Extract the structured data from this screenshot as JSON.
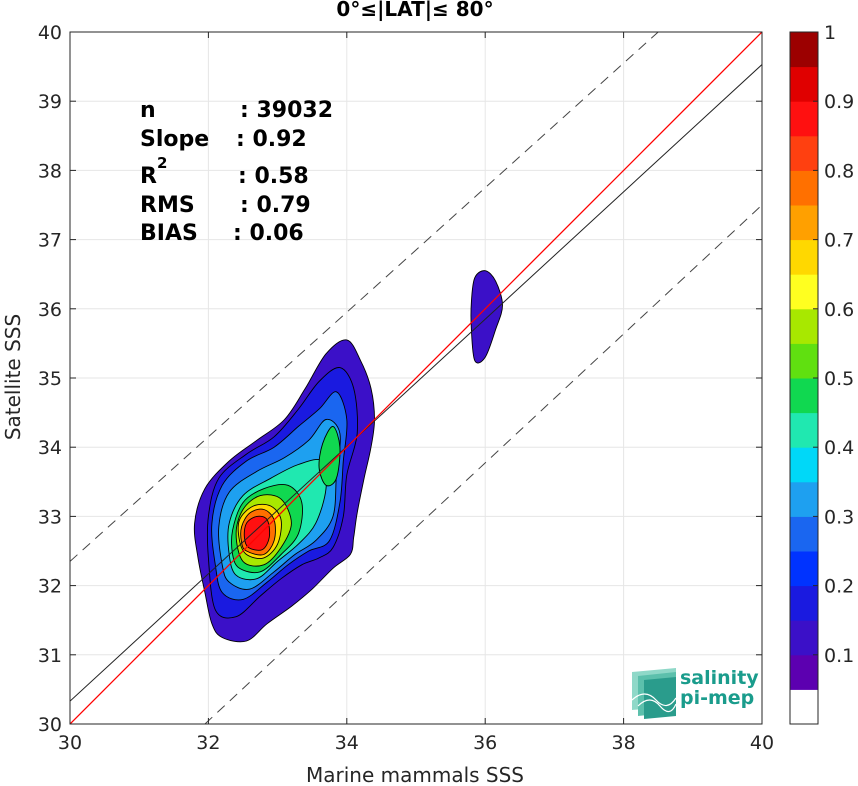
{
  "chart_data": {
    "type": "heatmap",
    "title": "0°≤|LAT|≤ 80°",
    "xlabel": "Marine mammals SSS",
    "ylabel": "Satellite SSS",
    "xlim": [
      30,
      40
    ],
    "ylim": [
      30,
      40
    ],
    "x_ticks": [
      "30",
      "32",
      "34",
      "36",
      "38",
      "40"
    ],
    "y_ticks": [
      "30",
      "31",
      "32",
      "33",
      "34",
      "35",
      "36",
      "37",
      "38",
      "39",
      "40"
    ],
    "grid": true,
    "colorbar": {
      "range": [
        0,
        1
      ],
      "tick_labels": [
        "0.1",
        "0.2",
        "0.3",
        "0.4",
        "0.5",
        "0.6",
        "0.7",
        "0.8",
        "0.9",
        "1"
      ],
      "colors": [
        "#ffffff",
        "#5c00b0",
        "#3b10c8",
        "#1a1ae0",
        "#0033ff",
        "#1a66f0",
        "#1ea0f0",
        "#00d8f8",
        "#20e8b0",
        "#10d850",
        "#60e010",
        "#a8e800",
        "#ffff20",
        "#ffd800",
        "#ffa000",
        "#ff7000",
        "#ff4010",
        "#ff1010",
        "#e00000",
        "#9c0000"
      ]
    },
    "stats": {
      "n_label": "n",
      "n_value": ": 39032",
      "slope_label": "Slope",
      "slope_value": ": 0.92",
      "r2_label": "R",
      "r2_sup": "2",
      "r2_value": ": 0.58",
      "rms_label": "RMS",
      "rms_value": ": 0.79",
      "bias_label": "BIAS",
      "bias_value": ": 0.06"
    },
    "lines": {
      "identity": {
        "color": "#ff0000",
        "x": [
          30,
          40
        ],
        "y": [
          30,
          40
        ]
      },
      "regression": {
        "color": "#222222",
        "x": [
          30,
          40
        ],
        "y": [
          30.33,
          39.53
        ]
      },
      "upper_dashed": {
        "color": "#444444",
        "x": [
          30,
          38.5
        ],
        "y": [
          32.35,
          40
        ]
      },
      "lower_dashed": {
        "color": "#444444",
        "x": [
          31.95,
          40
        ],
        "y": [
          30,
          37.5
        ]
      }
    },
    "main_blob_levels": [
      {
        "level": 0.05,
        "color": "#3b10c8",
        "points": [
          [
            32.2,
            31.25
          ],
          [
            32.55,
            31.2
          ],
          [
            32.85,
            31.45
          ],
          [
            33.2,
            31.7
          ],
          [
            33.5,
            31.95
          ],
          [
            33.8,
            32.25
          ],
          [
            34.05,
            32.45
          ],
          [
            34.1,
            32.7
          ],
          [
            34.15,
            33.05
          ],
          [
            34.25,
            33.55
          ],
          [
            34.35,
            34.0
          ],
          [
            34.4,
            34.4
          ],
          [
            34.35,
            34.85
          ],
          [
            34.2,
            35.25
          ],
          [
            34.0,
            35.55
          ],
          [
            33.7,
            35.35
          ],
          [
            33.4,
            34.85
          ],
          [
            33.1,
            34.4
          ],
          [
            32.7,
            34.1
          ],
          [
            32.3,
            33.8
          ],
          [
            31.95,
            33.4
          ],
          [
            31.8,
            32.9
          ],
          [
            31.85,
            32.4
          ],
          [
            31.95,
            31.9
          ],
          [
            32.05,
            31.45
          ]
        ]
      },
      {
        "level": 0.1,
        "color": "#1a1ae0",
        "points": [
          [
            32.1,
            31.65
          ],
          [
            32.4,
            31.55
          ],
          [
            32.75,
            31.85
          ],
          [
            33.05,
            32.1
          ],
          [
            33.35,
            32.3
          ],
          [
            33.6,
            32.4
          ],
          [
            33.8,
            32.55
          ],
          [
            33.95,
            33.0
          ],
          [
            34.0,
            33.6
          ],
          [
            34.15,
            34.2
          ],
          [
            34.1,
            34.85
          ],
          [
            33.9,
            35.15
          ],
          [
            33.6,
            34.95
          ],
          [
            33.3,
            34.55
          ],
          [
            32.95,
            34.15
          ],
          [
            32.55,
            33.9
          ],
          [
            32.15,
            33.55
          ],
          [
            32.0,
            33.0
          ],
          [
            32.0,
            32.4
          ]
        ]
      },
      {
        "level": 0.2,
        "color": "#1a66f0",
        "points": [
          [
            32.2,
            31.9
          ],
          [
            32.5,
            31.8
          ],
          [
            32.85,
            32.05
          ],
          [
            33.15,
            32.3
          ],
          [
            33.45,
            32.5
          ],
          [
            33.75,
            32.65
          ],
          [
            33.9,
            33.2
          ],
          [
            33.95,
            33.8
          ],
          [
            34.0,
            34.4
          ],
          [
            33.85,
            34.8
          ],
          [
            33.6,
            34.55
          ],
          [
            33.3,
            34.3
          ],
          [
            32.95,
            34.0
          ],
          [
            32.55,
            33.8
          ],
          [
            32.2,
            33.45
          ],
          [
            32.05,
            32.9
          ],
          [
            32.1,
            32.3
          ]
        ]
      },
      {
        "level": 0.3,
        "color": "#1ea0f0",
        "points": [
          [
            32.3,
            32.05
          ],
          [
            32.6,
            31.95
          ],
          [
            32.95,
            32.2
          ],
          [
            33.25,
            32.45
          ],
          [
            33.55,
            32.65
          ],
          [
            33.8,
            33.0
          ],
          [
            33.85,
            33.6
          ],
          [
            33.9,
            34.2
          ],
          [
            33.7,
            34.4
          ],
          [
            33.45,
            34.1
          ],
          [
            33.1,
            33.85
          ],
          [
            32.7,
            33.65
          ],
          [
            32.3,
            33.35
          ],
          [
            32.15,
            32.85
          ],
          [
            32.2,
            32.3
          ]
        ]
      },
      {
        "level": 0.4,
        "color": "#20e8b0",
        "points": [
          [
            32.4,
            32.15
          ],
          [
            32.7,
            32.1
          ],
          [
            33.0,
            32.35
          ],
          [
            33.3,
            32.6
          ],
          [
            33.55,
            32.9
          ],
          [
            33.7,
            33.4
          ],
          [
            33.65,
            33.8
          ],
          [
            33.3,
            33.75
          ],
          [
            32.9,
            33.55
          ],
          [
            32.5,
            33.3
          ],
          [
            32.3,
            32.9
          ],
          [
            32.3,
            32.45
          ]
        ]
      },
      {
        "level": 0.5,
        "color": "#10d850",
        "points": [
          [
            32.45,
            32.25
          ],
          [
            32.75,
            32.2
          ],
          [
            33.05,
            32.45
          ],
          [
            33.3,
            32.75
          ],
          [
            33.35,
            33.2
          ],
          [
            33.15,
            33.45
          ],
          [
            32.8,
            33.4
          ],
          [
            32.5,
            33.2
          ],
          [
            32.35,
            32.8
          ],
          [
            32.35,
            32.45
          ]
        ]
      },
      {
        "level": 0.6,
        "color": "#a8e800",
        "points": [
          [
            32.5,
            32.35
          ],
          [
            32.8,
            32.3
          ],
          [
            33.05,
            32.55
          ],
          [
            33.2,
            32.9
          ],
          [
            33.05,
            33.25
          ],
          [
            32.75,
            33.3
          ],
          [
            32.5,
            33.1
          ],
          [
            32.4,
            32.75
          ]
        ]
      },
      {
        "level": 0.7,
        "color": "#ffd800",
        "points": [
          [
            32.55,
            32.45
          ],
          [
            32.8,
            32.4
          ],
          [
            33.0,
            32.6
          ],
          [
            33.05,
            32.95
          ],
          [
            32.9,
            33.15
          ],
          [
            32.65,
            33.15
          ],
          [
            32.45,
            32.95
          ],
          [
            32.45,
            32.65
          ]
        ]
      },
      {
        "level": 0.8,
        "color": "#ff7000",
        "points": [
          [
            32.55,
            32.5
          ],
          [
            32.8,
            32.45
          ],
          [
            32.95,
            32.65
          ],
          [
            32.95,
            32.95
          ],
          [
            32.8,
            33.1
          ],
          [
            32.6,
            33.05
          ],
          [
            32.48,
            32.85
          ],
          [
            32.48,
            32.62
          ]
        ]
      },
      {
        "level": 0.9,
        "color": "#ff1010",
        "points": [
          [
            32.58,
            32.55
          ],
          [
            32.78,
            32.52
          ],
          [
            32.88,
            32.7
          ],
          [
            32.85,
            32.95
          ],
          [
            32.7,
            33.0
          ],
          [
            32.55,
            32.9
          ],
          [
            32.52,
            32.7
          ]
        ]
      }
    ],
    "second_peak": {
      "level": 0.5,
      "color": "#10d850",
      "points": [
        [
          33.7,
          33.45
        ],
        [
          33.85,
          33.55
        ],
        [
          33.9,
          34.0
        ],
        [
          33.8,
          34.3
        ],
        [
          33.65,
          34.05
        ],
        [
          33.6,
          33.7
        ]
      ]
    },
    "small_blob": {
      "level": 0.05,
      "color": "#3b10c8",
      "points": [
        [
          35.85,
          35.25
        ],
        [
          36.0,
          35.3
        ],
        [
          36.15,
          35.7
        ],
        [
          36.25,
          36.05
        ],
        [
          36.15,
          36.4
        ],
        [
          36.0,
          36.55
        ],
        [
          35.85,
          36.45
        ],
        [
          35.8,
          36.1
        ],
        [
          35.8,
          35.7
        ]
      ]
    }
  },
  "logo": {
    "line1": "salinity",
    "line2": "pi-mep"
  }
}
